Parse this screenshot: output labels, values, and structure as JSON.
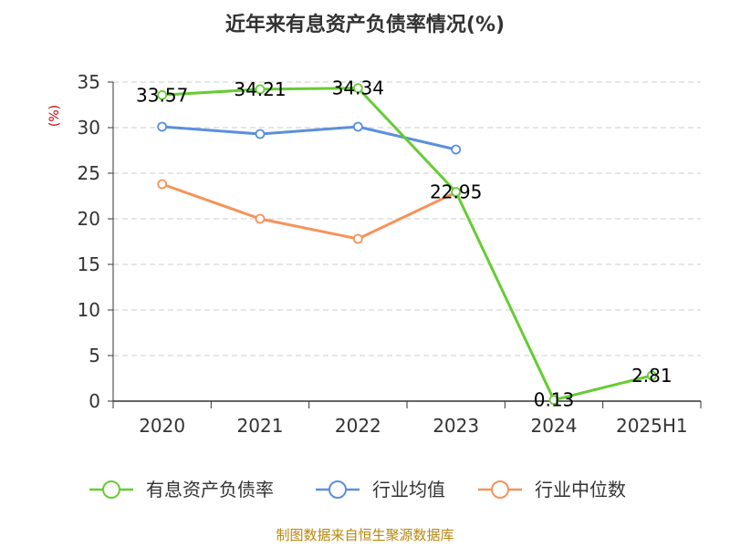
{
  "chart_data": {
    "type": "line",
    "title": "近年来有息资产负债率情况(%)",
    "ylabel": "(%)",
    "xlabel": "",
    "categories": [
      "2020",
      "2021",
      "2022",
      "2023",
      "2024",
      "2025H1"
    ],
    "ylim": [
      0,
      35
    ],
    "yticks": [
      0,
      5,
      10,
      15,
      20,
      25,
      30,
      35
    ],
    "grid": true,
    "legend_position": "bottom",
    "series": [
      {
        "name": "有息资产负债率",
        "color": "#66cc33",
        "values": [
          33.57,
          34.21,
          34.34,
          22.95,
          0.13,
          2.81
        ],
        "labels": [
          "33.57",
          "34.21",
          "34.34",
          "22.95",
          "0.13",
          "2.81"
        ]
      },
      {
        "name": "行业均值",
        "color": "#5b8fdc",
        "values": [
          30.1,
          29.3,
          30.1,
          27.6,
          null,
          null
        ]
      },
      {
        "name": "行业中位数",
        "color": "#f5935a",
        "values": [
          23.8,
          20.0,
          17.8,
          22.9,
          null,
          null
        ]
      }
    ],
    "source": "制图数据来自恒生聚源数据库"
  }
}
